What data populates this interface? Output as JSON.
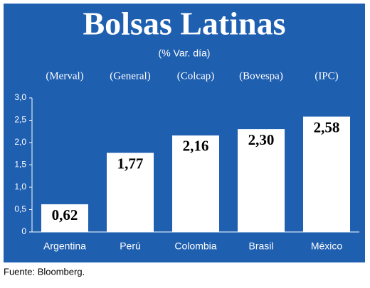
{
  "chart_data": {
    "type": "bar",
    "title": "Bolsas Latinas",
    "subtitle": "(% Var. día)",
    "categories": [
      "Argentina",
      "Perú",
      "Colombia",
      "Brasil",
      "México"
    ],
    "index_labels": [
      "(Merval)",
      "(General)",
      "(Colcap)",
      "(Bovespa)",
      "(IPC)"
    ],
    "values": [
      0.62,
      1.77,
      2.16,
      2.3,
      2.58
    ],
    "value_labels": [
      "0,62",
      "1,77",
      "2,16",
      "2,30",
      "2,58"
    ],
    "color": "#ffffff",
    "background": "#1f5fb0",
    "ylim": [
      0,
      3.0
    ],
    "yticks": [
      0,
      {
        "value": 0.5,
        "label": "0,5"
      },
      {
        "value": 1.0,
        "label": "1,0"
      },
      {
        "value": 1.5,
        "label": "1,5"
      },
      {
        "value": 2.0,
        "label": "2,0"
      },
      {
        "value": 2.5,
        "label": "2,5"
      },
      {
        "value": 3.0,
        "label": "3,0"
      }
    ],
    "source": "Fuente: Bloomberg."
  }
}
